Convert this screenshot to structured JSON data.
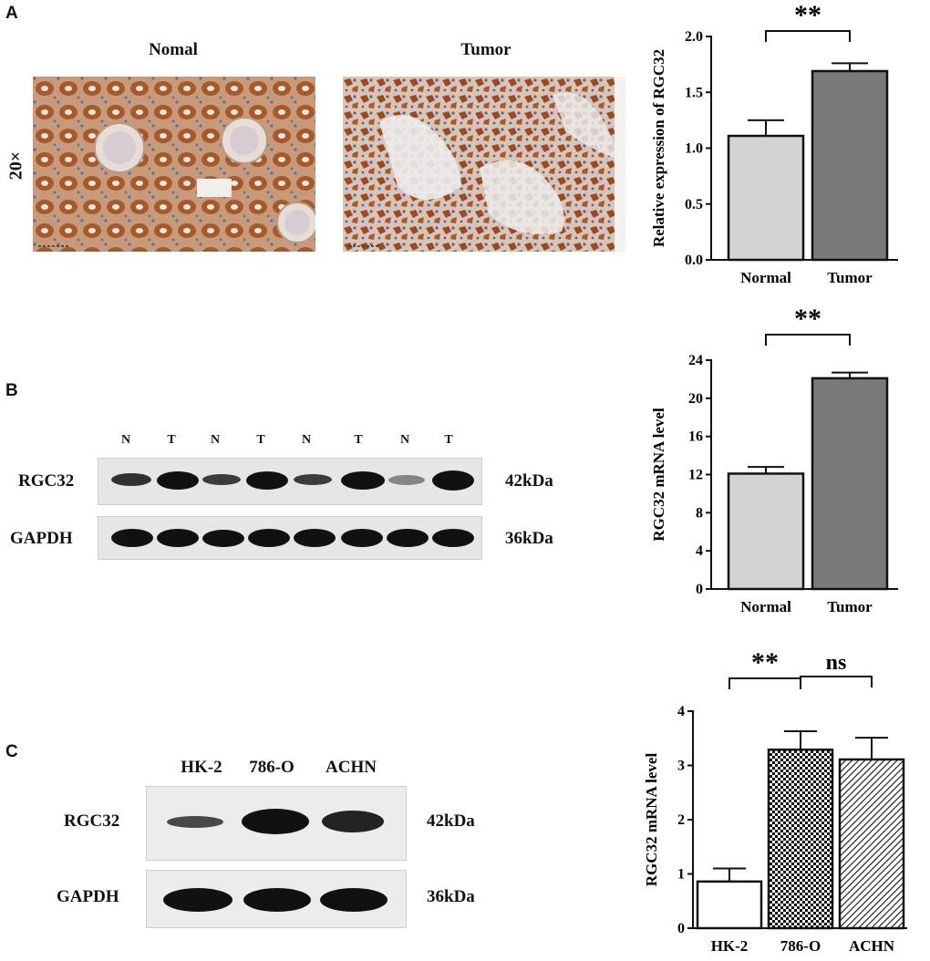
{
  "panels": {
    "a": {
      "letter": "A",
      "image_labels": [
        "Nomal",
        "Tumor"
      ],
      "magnification": "20×"
    },
    "b": {
      "letter": "B",
      "lane_labels": [
        "N",
        "T",
        "N",
        "T",
        "N",
        "T",
        "N",
        "T"
      ],
      "rows": [
        {
          "protein": "RGC32",
          "size": "42kDa"
        },
        {
          "protein": "GAPDH",
          "size": "36kDa"
        }
      ]
    },
    "c": {
      "letter": "C",
      "lane_labels": [
        "HK-2",
        "786-O",
        "ACHN"
      ],
      "rows": [
        {
          "protein": "RGC32",
          "size": "42kDa"
        },
        {
          "protein": "GAPDH",
          "size": "36kDa"
        }
      ]
    }
  },
  "colors": {
    "normal_bar": "#d3d3d3",
    "tumor_bar": "#7a7a7a",
    "tissue_brown": "#a0522d",
    "band": "#111111"
  },
  "chart_data": [
    {
      "type": "bar",
      "categories": [
        "Normal",
        "Tumor"
      ],
      "values": [
        1.11,
        1.69
      ],
      "errors": [
        0.14,
        0.07
      ],
      "ylabel": "Relative expression of RGC32",
      "ylim": [
        0,
        2.0
      ],
      "yticks": [
        0.0,
        0.5,
        1.0,
        1.5,
        2.0
      ],
      "ytick_labels": [
        "0.0",
        "0.5",
        "1.0",
        "1.5",
        "2.0"
      ],
      "fills": [
        "#d3d3d3",
        "#7a7a7a"
      ],
      "significance": [
        {
          "from": 0,
          "to": 1,
          "label": "**"
        }
      ]
    },
    {
      "type": "bar",
      "categories": [
        "Normal",
        "Tumor"
      ],
      "values": [
        12.1,
        22.1
      ],
      "errors": [
        0.7,
        0.6
      ],
      "ylabel": "RGC32 mRNA level",
      "ylim": [
        0,
        24
      ],
      "yticks": [
        0,
        4,
        8,
        12,
        16,
        20,
        24
      ],
      "ytick_labels": [
        "0",
        "4",
        "8",
        "12",
        "16",
        "20",
        "24"
      ],
      "fills": [
        "#d3d3d3",
        "#7a7a7a"
      ],
      "significance": [
        {
          "from": 0,
          "to": 1,
          "label": "**"
        }
      ]
    },
    {
      "type": "bar",
      "categories": [
        "HK-2",
        "786-O",
        "ACHN"
      ],
      "values": [
        0.86,
        3.29,
        3.11
      ],
      "errors": [
        0.24,
        0.34,
        0.4
      ],
      "ylabel": "RGC32 mRNA level",
      "ylim": [
        0,
        4
      ],
      "yticks": [
        0,
        1,
        2,
        3,
        4
      ],
      "ytick_labels": [
        "0",
        "1",
        "2",
        "3",
        "4"
      ],
      "fills": [
        "#ffffff",
        "checker",
        "hatch"
      ],
      "significance": [
        {
          "from": 0,
          "to": 1,
          "label": "**"
        },
        {
          "from": 1,
          "to": 2,
          "label": "ns"
        }
      ]
    }
  ]
}
